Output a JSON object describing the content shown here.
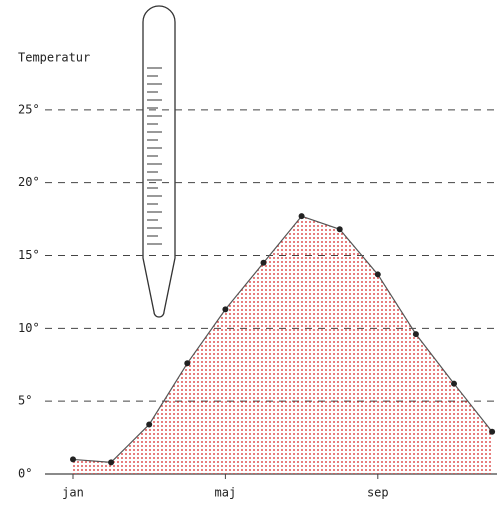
{
  "chart_data": {
    "type": "area",
    "title": "Temperatur",
    "categories": [
      "jan",
      null,
      null,
      null,
      "maj",
      null,
      null,
      null,
      "sep",
      null,
      null,
      null
    ],
    "values": [
      1.0,
      0.8,
      3.4,
      7.6,
      11.3,
      14.5,
      17.7,
      16.8,
      13.7,
      9.6,
      6.2,
      2.9
    ],
    "color": "#d62020",
    "ylim": [
      0,
      30
    ],
    "yticks": [
      {
        "value": 0,
        "label": "0°"
      },
      {
        "value": 5,
        "label": "5°"
      },
      {
        "value": 10,
        "label": "10°"
      },
      {
        "value": 15,
        "label": "15°"
      },
      {
        "value": 20,
        "label": "20°"
      },
      {
        "value": 25,
        "label": "25°"
      }
    ],
    "grid": true
  }
}
